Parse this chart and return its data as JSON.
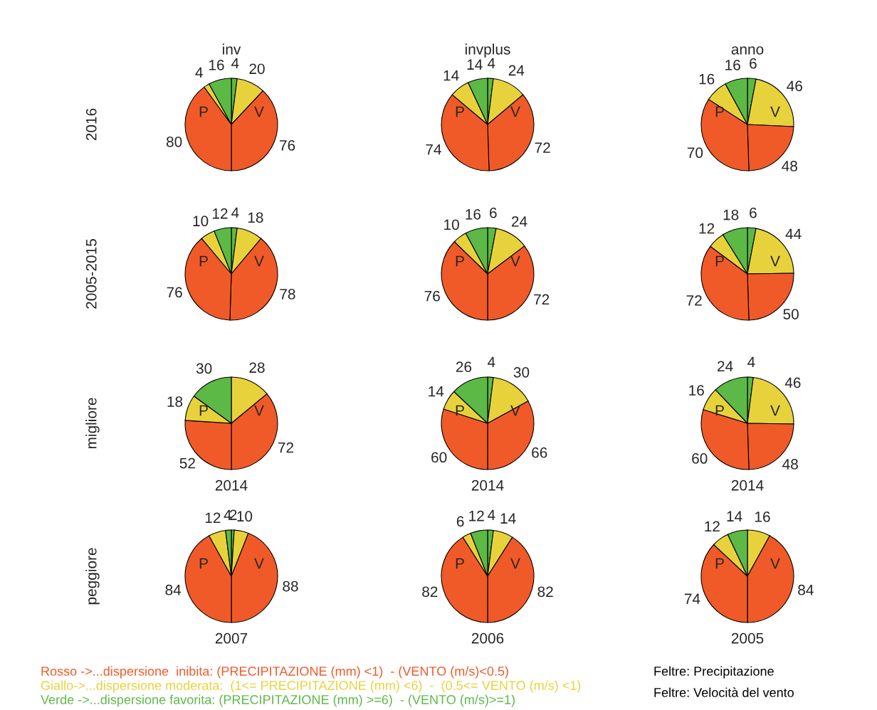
{
  "chart_data": [
    {
      "type": "pie",
      "title": "inv",
      "ylabel": "2016",
      "categories": [
        null,
        null,
        null,
        null,
        null,
        null
      ],
      "values": [
        4,
        20,
        76,
        80,
        4,
        16
      ],
      "colors": [
        "#5cb946",
        "#e8d23c",
        "#f05a28",
        "#f05a28",
        "#e8d23c",
        "#5cb946"
      ],
      "data_labels": true,
      "annotations": [
        "P",
        "V"
      ]
    },
    {
      "type": "pie",
      "title": "invplus",
      "categories": [
        null,
        null,
        null,
        null,
        null,
        null
      ],
      "values": [
        4,
        24,
        72,
        74,
        14,
        14
      ],
      "colors": [
        "#5cb946",
        "#e8d23c",
        "#f05a28",
        "#f05a28",
        "#e8d23c",
        "#5cb946"
      ],
      "data_labels": true,
      "annotations": [
        "P",
        "V"
      ]
    },
    {
      "type": "pie",
      "title": "anno",
      "categories": [
        null,
        null,
        null,
        null,
        null,
        null
      ],
      "values": [
        6,
        46,
        48,
        70,
        16,
        16
      ],
      "colors": [
        "#5cb946",
        "#e8d23c",
        "#f05a28",
        "#f05a28",
        "#e8d23c",
        "#5cb946"
      ],
      "data_labels": true,
      "annotations": [
        "P",
        "V"
      ]
    },
    {
      "type": "pie",
      "ylabel": "2005-2015",
      "categories": [
        null,
        null,
        null,
        null,
        null,
        null
      ],
      "values": [
        4,
        18,
        78,
        76,
        10,
        12
      ],
      "colors": [
        "#5cb946",
        "#e8d23c",
        "#f05a28",
        "#f05a28",
        "#e8d23c",
        "#5cb946"
      ],
      "data_labels": true,
      "annotations": [
        "P",
        "V"
      ]
    },
    {
      "type": "pie",
      "categories": [
        null,
        null,
        null,
        null,
        null,
        null
      ],
      "values": [
        6,
        24,
        72,
        76,
        10,
        16
      ],
      "colors": [
        "#5cb946",
        "#e8d23c",
        "#f05a28",
        "#f05a28",
        "#e8d23c",
        "#5cb946"
      ],
      "data_labels": true,
      "annotations": [
        "P",
        "V"
      ]
    },
    {
      "type": "pie",
      "categories": [
        null,
        null,
        null,
        null,
        null,
        null
      ],
      "values": [
        6,
        44,
        50,
        72,
        12,
        18
      ],
      "colors": [
        "#5cb946",
        "#e8d23c",
        "#f05a28",
        "#f05a28",
        "#e8d23c",
        "#5cb946"
      ],
      "data_labels": true,
      "annotations": [
        "P",
        "V"
      ]
    },
    {
      "type": "pie",
      "ylabel": "migliore",
      "xlabel": "2014",
      "categories": [
        null,
        null,
        null,
        null,
        null,
        null
      ],
      "values": [
        0,
        28,
        72,
        52,
        18,
        30
      ],
      "colors": [
        "#5cb946",
        "#e8d23c",
        "#f05a28",
        "#f05a28",
        "#e8d23c",
        "#5cb946"
      ],
      "value_labels": [
        null,
        "28",
        "72",
        "52",
        "18",
        "30"
      ],
      "annotations": [
        "P",
        "V"
      ]
    },
    {
      "type": "pie",
      "xlabel": "2014",
      "categories": [
        null,
        null,
        null,
        null,
        null,
        null
      ],
      "values": [
        4,
        30,
        66,
        60,
        14,
        26
      ],
      "colors": [
        "#5cb946",
        "#e8d23c",
        "#f05a28",
        "#f05a28",
        "#e8d23c",
        "#5cb946"
      ],
      "data_labels": true,
      "annotations": [
        "P",
        "V"
      ]
    },
    {
      "type": "pie",
      "xlabel": "2014",
      "categories": [
        null,
        null,
        null,
        null,
        null,
        null
      ],
      "values": [
        4,
        46,
        48,
        60,
        16,
        24
      ],
      "colors": [
        "#5cb946",
        "#e8d23c",
        "#f05a28",
        "#f05a28",
        "#e8d23c",
        "#5cb946"
      ],
      "data_labels": true,
      "annotations": [
        "P",
        "V"
      ]
    },
    {
      "type": "pie",
      "ylabel": "peggiore",
      "xlabel": "2007",
      "categories": [
        null,
        null,
        null,
        null,
        null,
        null
      ],
      "values": [
        2,
        10,
        88,
        84,
        12,
        4
      ],
      "colors": [
        "#5cb946",
        "#e8d23c",
        "#f05a28",
        "#f05a28",
        "#e8d23c",
        "#5cb946"
      ],
      "data_labels": true,
      "annotations": [
        "P",
        "V"
      ]
    },
    {
      "type": "pie",
      "xlabel": "2006",
      "categories": [
        null,
        null,
        null,
        null,
        null,
        null
      ],
      "values": [
        4,
        14,
        82,
        82,
        6,
        12
      ],
      "colors": [
        "#5cb946",
        "#e8d23c",
        "#f05a28",
        "#f05a28",
        "#e8d23c",
        "#5cb946"
      ],
      "data_labels": true,
      "annotations": [
        "P",
        "V"
      ]
    },
    {
      "type": "pie",
      "xlabel": "2005",
      "categories": [
        null,
        null,
        null,
        null,
        null,
        null
      ],
      "values": [
        0,
        16,
        84,
        74,
        12,
        14
      ],
      "colors": [
        "#5cb946",
        "#e8d23c",
        "#f05a28",
        "#f05a28",
        "#e8d23c",
        "#5cb946"
      ],
      "value_labels": [
        null,
        "16",
        "84",
        "74",
        "12",
        "14"
      ],
      "annotations": [
        "P",
        "V"
      ]
    },
    {
      "type": "other",
      "colors": [
        "#f05a28",
        "#e8d23c",
        "#5cb946",
        "#000000",
        "#000000"
      ],
      "annotations": [
        "Rosso ->...dispersione  inibita: (PRECIPITAZIONE (mm) <1)  - (VENTO (m/s)<0.5)",
        "Giallo->...dispersione moderata:  (1<= PRECIPITAZIONE (mm) <6)  -  (0.5<= VENTO (m/s) <1)",
        "Verde ->...dispersione favorita: (PRECIPITAZIONE (mm) >=6)  - (VENTO (m/s)>=1)",
        "Feltre: Precipitazione",
        "Feltre: Velocità del vento"
      ]
    }
  ]
}
